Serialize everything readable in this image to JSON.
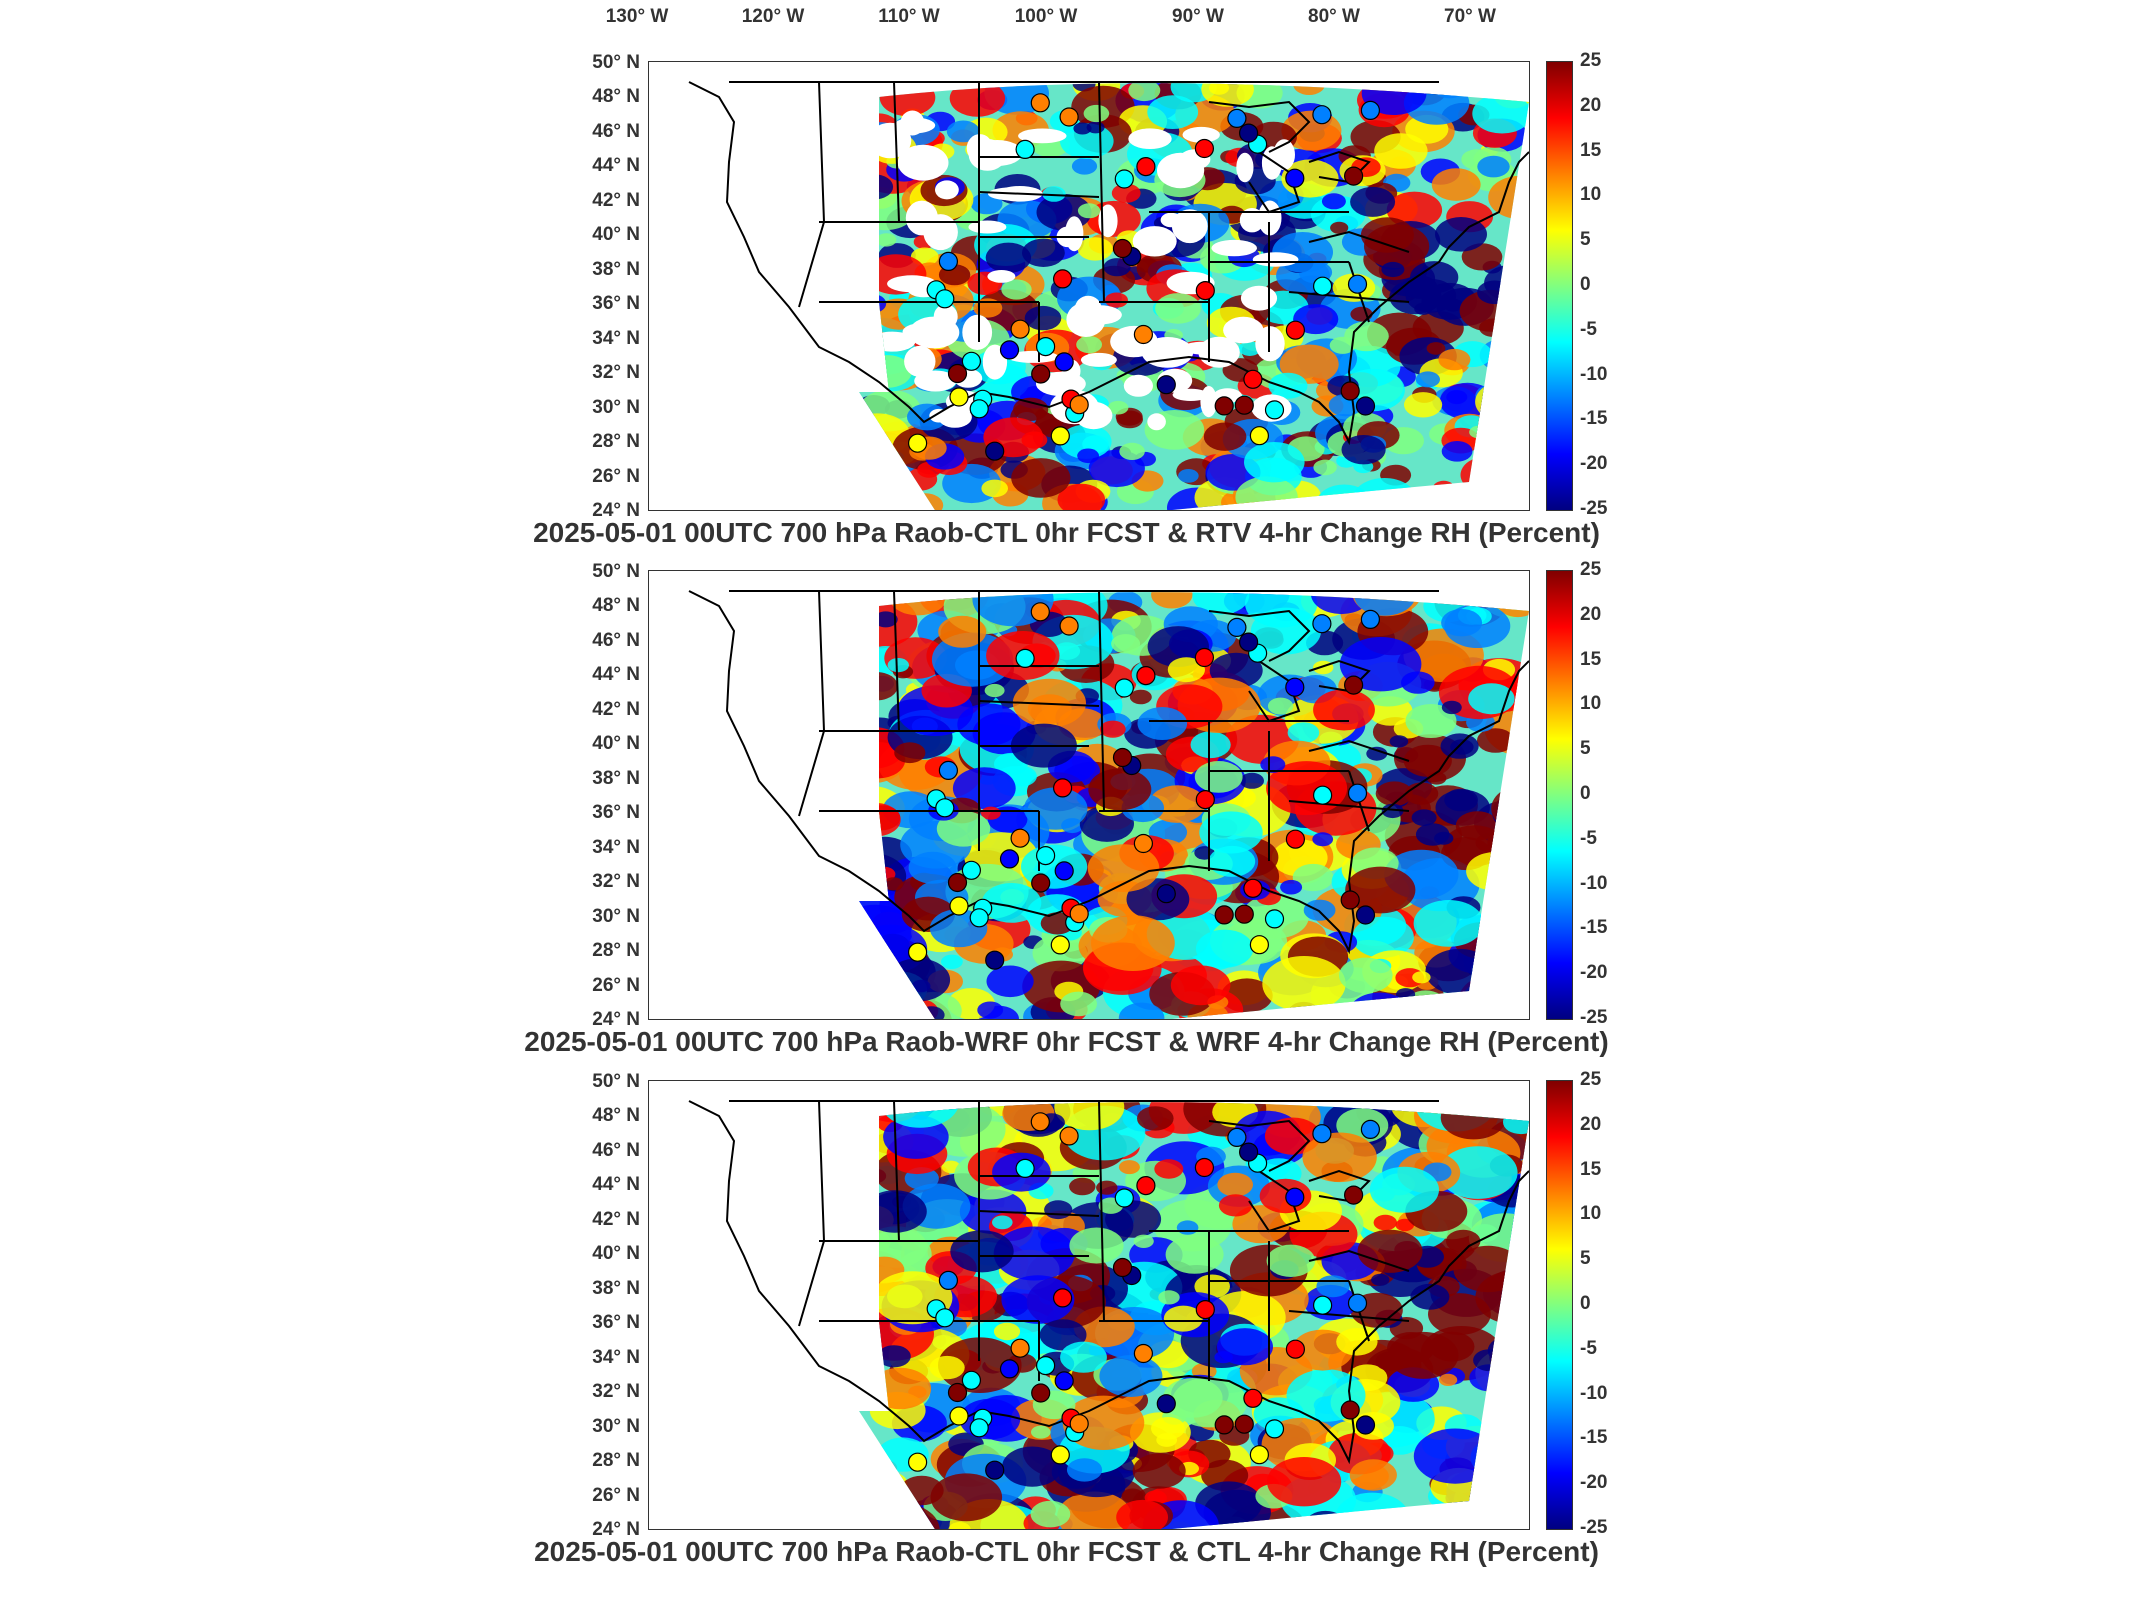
{
  "top_lon_labels": [
    "130° W",
    "120° W",
    "110° W",
    "100° W",
    "90° W",
    "80° W",
    "70° W"
  ],
  "lat_labels": [
    "50° N",
    "48° N",
    "46° N",
    "44° N",
    "42° N",
    "40° N",
    "38° N",
    "36° N",
    "34° N",
    "32° N",
    "30° N",
    "28° N",
    "26° N",
    "24° N"
  ],
  "colorbar_ticks": [
    "25",
    "20",
    "15",
    "10",
    "5",
    "0",
    "-5",
    "-10",
    "-15",
    "-20",
    "-25"
  ],
  "colorbar_colors": [
    "#800000",
    "#ff0000",
    "#ff8000",
    "#ffff00",
    "#80ff80",
    "#00ffff",
    "#0080ff",
    "#0000ff",
    "#000080"
  ],
  "panels": [
    {
      "title": "2025-05-01 00UTC 700 hPa Raob-CTL 0hr FCST & RTV 4-hr Change RH (Percent)"
    },
    {
      "title": "2025-05-01 00UTC 700 hPa Raob-WRF 0hr FCST & WRF 4-hr Change RH (Percent)"
    },
    {
      "title": "2025-05-01 00UTC 700 hPa Raob-CTL 0hr FCST & CTL 4-hr Change RH (Percent)"
    }
  ]
}
